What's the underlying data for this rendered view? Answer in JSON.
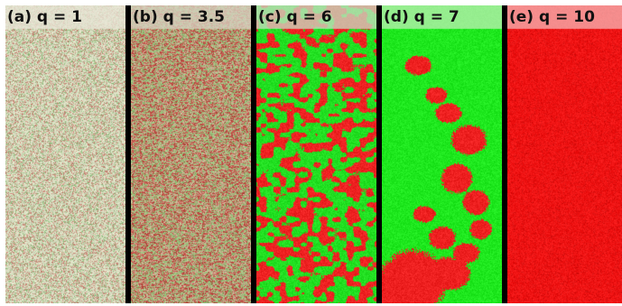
{
  "figure": {
    "panels": [
      {
        "label": "(a) q = 1",
        "pattern": "fine-noise",
        "primary_color": "#d8dcc0",
        "secondary_color": "#c98a7a",
        "label_bg": "#e8e6d6"
      },
      {
        "label": "(b) q = 3.5",
        "pattern": "streaky-noise",
        "primary_color": "#c9a98e",
        "secondary_color": "#9ab87a",
        "label_bg": "#d6d2c0"
      },
      {
        "label": "(c) q = 6",
        "pattern": "mixed-domains",
        "primary_color": "#22e022",
        "secondary_color": "#ee2222",
        "label_bg": "#c8dcc0"
      },
      {
        "label": "(d) q = 7",
        "pattern": "green-with-red-patches",
        "primary_color": "#1ee81e",
        "secondary_color": "#ee2020",
        "label_bg": "#b8f0b0"
      },
      {
        "label": "(e) q = 10",
        "pattern": "uniform-red",
        "primary_color": "#f01414",
        "secondary_color": "#d81010",
        "label_bg": "#f7b0b0"
      }
    ]
  }
}
